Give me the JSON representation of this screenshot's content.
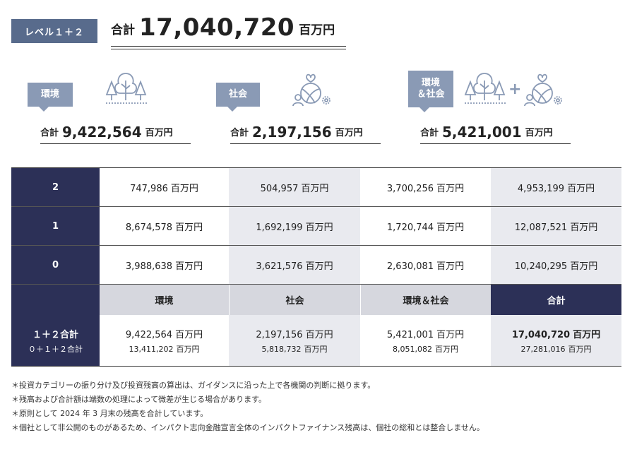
{
  "header": {
    "level_label": "レベル１＋２",
    "total_label": "合計",
    "total_value": "17,040,720",
    "total_unit": "百万円"
  },
  "categories": [
    {
      "badge": "環境",
      "total_label": "合計",
      "total_value": "9,422,564",
      "unit": "百万円",
      "icon": "tree-icon"
    },
    {
      "badge": "社会",
      "total_label": "合計",
      "total_value": "2,197,156",
      "unit": "百万円",
      "icon": "social-icon"
    },
    {
      "badge": "環境\n＆社会",
      "total_label": "合計",
      "total_value": "5,421,001",
      "unit": "百万円",
      "icon": "tree-plus-social-icon"
    }
  ],
  "plus_sign": "+",
  "table": {
    "unit": "百万円",
    "rows": [
      {
        "label": "2",
        "values": [
          "747,986",
          "504,957",
          "3,700,256",
          "4,953,199"
        ]
      },
      {
        "label": "1",
        "values": [
          "8,674,578",
          "1,692,199",
          "1,720,744",
          "12,087,521"
        ]
      },
      {
        "label": "0",
        "values": [
          "3,988,638",
          "3,621,576",
          "2,630,081",
          "10,240,295"
        ]
      }
    ],
    "headers": [
      "環境",
      "社会",
      "環境＆社会",
      "合計"
    ],
    "summary": {
      "label_main": "１＋２合計",
      "label_sub": "０＋１＋２合計",
      "main_values": [
        "9,422,564",
        "2,197,156",
        "5,421,001",
        "17,040,720"
      ],
      "sub_values": [
        "13,411,202",
        "5,818,732",
        "8,051,082",
        "27,281,016"
      ]
    }
  },
  "notes": [
    "＊投資カテゴリーの振り分け及び投資残高の算出は、ガイダンスに沿った上で各機関の判断に拠ります。",
    "＊残高および合計額は端数の処理によって微差が生じる場合があります。",
    "＊原則として 2024 年 3 月末の残高を合計しています。",
    "＊個社として非公開のものがあるため、インパクト志向金融宣言全体のインパクトファイナンス残高は、個社の総和とは整合しません。"
  ],
  "colors": {
    "navy": "#2c3057",
    "badge": "#586b8c",
    "light_badge": "#8a9ab5",
    "grey_cell": "#e9eaef"
  }
}
